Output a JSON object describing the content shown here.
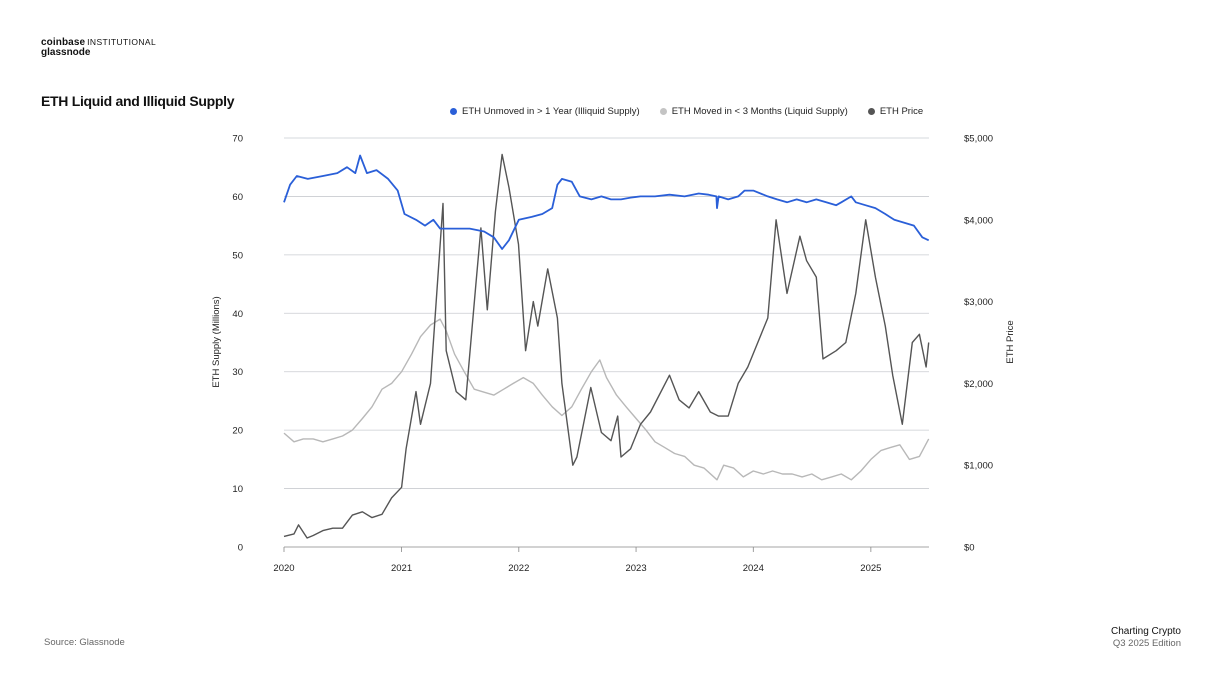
{
  "brand": {
    "coinbase": "coinbase",
    "institutional": "INSTITUTIONAL",
    "glassnode": "glassnode"
  },
  "title": "ETH Liquid and Illiquid Supply",
  "source": "Source: Glassnode",
  "footer": {
    "title": "Charting Crypto",
    "edition": "Q3 2025 Edition"
  },
  "chart_data": {
    "type": "line",
    "title": "ETH Liquid and Illiquid Supply",
    "xlabel": "",
    "ylabel": "ETH Supply (Millions)",
    "y2label": "ETH Price",
    "xlim": [
      "2020-01-01",
      "2025-07-01"
    ],
    "x_ticks": [
      "2020",
      "2021",
      "2022",
      "2023",
      "2024",
      "2025"
    ],
    "ylim": [
      0,
      70
    ],
    "y_ticks": [
      "0",
      "10",
      "20",
      "30",
      "40",
      "50",
      "60",
      "70"
    ],
    "y2lim": [
      0,
      5000
    ],
    "y2_ticks": [
      "$0",
      "$1,000",
      "$2,000",
      "$3,000",
      "$4,000",
      "$5,000"
    ],
    "grid": "horizontal",
    "legend_position": "top",
    "series": [
      {
        "name": "ETH Unmoved in > 1 Year (Illiquid Supply)",
        "axis": "left",
        "color": "#2a5fd8",
        "points": [
          [
            "2020-01-01",
            59
          ],
          [
            "2020-01-20",
            62
          ],
          [
            "2020-02-10",
            63.5
          ],
          [
            "2020-03-15",
            63
          ],
          [
            "2020-05-01",
            63.5
          ],
          [
            "2020-06-15",
            64
          ],
          [
            "2020-07-15",
            65
          ],
          [
            "2020-08-10",
            64
          ],
          [
            "2020-08-25",
            67
          ],
          [
            "2020-09-15",
            64
          ],
          [
            "2020-10-15",
            64.5
          ],
          [
            "2020-11-20",
            63
          ],
          [
            "2020-12-20",
            61
          ],
          [
            "2021-01-10",
            57
          ],
          [
            "2021-02-15",
            56
          ],
          [
            "2021-03-15",
            55
          ],
          [
            "2021-04-10",
            56
          ],
          [
            "2021-05-01",
            54.5
          ],
          [
            "2021-06-15",
            54.5
          ],
          [
            "2021-08-01",
            54.5
          ],
          [
            "2021-09-15",
            54
          ],
          [
            "2021-10-15",
            53
          ],
          [
            "2021-11-10",
            51
          ],
          [
            "2021-12-01",
            52.5
          ],
          [
            "2022-01-01",
            56
          ],
          [
            "2022-02-10",
            56.5
          ],
          [
            "2022-03-15",
            57
          ],
          [
            "2022-04-15",
            58
          ],
          [
            "2022-05-01",
            62
          ],
          [
            "2022-05-15",
            63
          ],
          [
            "2022-06-15",
            62.5
          ],
          [
            "2022-07-10",
            60
          ],
          [
            "2022-08-15",
            59.5
          ],
          [
            "2022-09-15",
            60
          ],
          [
            "2022-10-15",
            59.5
          ],
          [
            "2022-11-15",
            59.5
          ],
          [
            "2022-12-15",
            59.8
          ],
          [
            "2023-01-15",
            60
          ],
          [
            "2023-03-01",
            60
          ],
          [
            "2023-04-15",
            60.3
          ],
          [
            "2023-06-01",
            60
          ],
          [
            "2023-07-15",
            60.5
          ],
          [
            "2023-08-15",
            60.3
          ],
          [
            "2023-09-08",
            60
          ],
          [
            "2023-09-10",
            58
          ],
          [
            "2023-09-15",
            60
          ],
          [
            "2023-10-15",
            59.5
          ],
          [
            "2023-11-15",
            60
          ],
          [
            "2023-12-05",
            61
          ],
          [
            "2024-01-01",
            61
          ],
          [
            "2024-02-15",
            60
          ],
          [
            "2024-03-15",
            59.5
          ],
          [
            "2024-04-15",
            59
          ],
          [
            "2024-05-15",
            59.5
          ],
          [
            "2024-06-15",
            59
          ],
          [
            "2024-07-15",
            59.5
          ],
          [
            "2024-08-15",
            59
          ],
          [
            "2024-09-15",
            58.5
          ],
          [
            "2024-10-01",
            59
          ],
          [
            "2024-11-01",
            60
          ],
          [
            "2024-11-15",
            59
          ],
          [
            "2024-12-15",
            58.5
          ],
          [
            "2025-01-15",
            58
          ],
          [
            "2025-02-15",
            57
          ],
          [
            "2025-03-15",
            56
          ],
          [
            "2025-04-15",
            55.5
          ],
          [
            "2025-05-15",
            55
          ],
          [
            "2025-06-10",
            53
          ],
          [
            "2025-06-30",
            52.5
          ]
        ]
      },
      {
        "name": "ETH Moved in < 3 Months (Liquid Supply)",
        "axis": "left",
        "color": "#b8b8b8",
        "points": [
          [
            "2020-01-01",
            19.5
          ],
          [
            "2020-02-01",
            18
          ],
          [
            "2020-03-01",
            18.5
          ],
          [
            "2020-04-01",
            18.5
          ],
          [
            "2020-05-01",
            18
          ],
          [
            "2020-06-01",
            18.5
          ],
          [
            "2020-07-01",
            19
          ],
          [
            "2020-08-01",
            20
          ],
          [
            "2020-09-01",
            22
          ],
          [
            "2020-10-01",
            24
          ],
          [
            "2020-11-01",
            27
          ],
          [
            "2020-12-01",
            28
          ],
          [
            "2021-01-01",
            30
          ],
          [
            "2021-02-01",
            33
          ],
          [
            "2021-03-01",
            36
          ],
          [
            "2021-04-01",
            38
          ],
          [
            "2021-05-01",
            39
          ],
          [
            "2021-05-20",
            37
          ],
          [
            "2021-06-15",
            33
          ],
          [
            "2021-07-15",
            30
          ],
          [
            "2021-08-15",
            27
          ],
          [
            "2021-09-15",
            26.5
          ],
          [
            "2021-10-15",
            26
          ],
          [
            "2021-11-15",
            27
          ],
          [
            "2021-12-15",
            28
          ],
          [
            "2022-01-15",
            29
          ],
          [
            "2022-02-15",
            28
          ],
          [
            "2022-03-15",
            26
          ],
          [
            "2022-04-15",
            24
          ],
          [
            "2022-05-15",
            22.5
          ],
          [
            "2022-06-15",
            24
          ],
          [
            "2022-07-15",
            27
          ],
          [
            "2022-08-15",
            30
          ],
          [
            "2022-09-10",
            32
          ],
          [
            "2022-10-01",
            29
          ],
          [
            "2022-11-01",
            26
          ],
          [
            "2022-12-01",
            24
          ],
          [
            "2023-01-01",
            22
          ],
          [
            "2023-02-01",
            20
          ],
          [
            "2023-03-01",
            18
          ],
          [
            "2023-04-01",
            17
          ],
          [
            "2023-05-01",
            16
          ],
          [
            "2023-06-01",
            15.5
          ],
          [
            "2023-07-01",
            14
          ],
          [
            "2023-08-01",
            13.5
          ],
          [
            "2023-09-10",
            11.5
          ],
          [
            "2023-10-01",
            14
          ],
          [
            "2023-11-01",
            13.5
          ],
          [
            "2023-12-01",
            12
          ],
          [
            "2024-01-01",
            13
          ],
          [
            "2024-02-01",
            12.5
          ],
          [
            "2024-03-01",
            13
          ],
          [
            "2024-04-01",
            12.5
          ],
          [
            "2024-05-01",
            12.5
          ],
          [
            "2024-06-01",
            12
          ],
          [
            "2024-07-01",
            12.5
          ],
          [
            "2024-08-01",
            11.5
          ],
          [
            "2024-09-01",
            12
          ],
          [
            "2024-10-01",
            12.5
          ],
          [
            "2024-11-01",
            11.5
          ],
          [
            "2024-12-01",
            13
          ],
          [
            "2025-01-01",
            15
          ],
          [
            "2025-02-01",
            16.5
          ],
          [
            "2025-03-01",
            17
          ],
          [
            "2025-04-01",
            17.5
          ],
          [
            "2025-05-01",
            15
          ],
          [
            "2025-06-01",
            15.5
          ],
          [
            "2025-06-30",
            18.5
          ]
        ]
      },
      {
        "name": "ETH Price",
        "axis": "right",
        "color": "#555555",
        "points": [
          [
            "2020-01-01",
            130
          ],
          [
            "2020-02-01",
            160
          ],
          [
            "2020-02-15",
            270
          ],
          [
            "2020-03-13",
            110
          ],
          [
            "2020-04-01",
            140
          ],
          [
            "2020-05-01",
            200
          ],
          [
            "2020-06-01",
            230
          ],
          [
            "2020-07-01",
            230
          ],
          [
            "2020-08-01",
            390
          ],
          [
            "2020-09-01",
            430
          ],
          [
            "2020-10-01",
            360
          ],
          [
            "2020-11-01",
            400
          ],
          [
            "2020-12-01",
            600
          ],
          [
            "2021-01-01",
            730
          ],
          [
            "2021-01-15",
            1200
          ],
          [
            "2021-02-15",
            1900
          ],
          [
            "2021-03-01",
            1500
          ],
          [
            "2021-04-01",
            2000
          ],
          [
            "2021-05-10",
            4200
          ],
          [
            "2021-05-20",
            2400
          ],
          [
            "2021-06-20",
            1900
          ],
          [
            "2021-07-20",
            1800
          ],
          [
            "2021-08-20",
            3200
          ],
          [
            "2021-09-05",
            3900
          ],
          [
            "2021-09-25",
            2900
          ],
          [
            "2021-10-20",
            4100
          ],
          [
            "2021-11-10",
            4800
          ],
          [
            "2021-12-01",
            4400
          ],
          [
            "2021-12-31",
            3700
          ],
          [
            "2022-01-22",
            2400
          ],
          [
            "2022-02-15",
            3000
          ],
          [
            "2022-03-01",
            2700
          ],
          [
            "2022-04-01",
            3400
          ],
          [
            "2022-05-01",
            2800
          ],
          [
            "2022-05-15",
            2000
          ],
          [
            "2022-06-18",
            1000
          ],
          [
            "2022-07-01",
            1100
          ],
          [
            "2022-08-13",
            1950
          ],
          [
            "2022-09-15",
            1400
          ],
          [
            "2022-10-15",
            1300
          ],
          [
            "2022-11-05",
            1600
          ],
          [
            "2022-11-15",
            1100
          ],
          [
            "2022-12-15",
            1200
          ],
          [
            "2023-01-15",
            1500
          ],
          [
            "2023-02-15",
            1650
          ],
          [
            "2023-04-15",
            2100
          ],
          [
            "2023-05-15",
            1800
          ],
          [
            "2023-06-15",
            1700
          ],
          [
            "2023-07-15",
            1900
          ],
          [
            "2023-08-20",
            1650
          ],
          [
            "2023-09-15",
            1600
          ],
          [
            "2023-10-15",
            1600
          ],
          [
            "2023-11-15",
            2000
          ],
          [
            "2023-12-15",
            2200
          ],
          [
            "2024-01-15",
            2500
          ],
          [
            "2024-02-15",
            2800
          ],
          [
            "2024-03-12",
            4000
          ],
          [
            "2024-04-15",
            3100
          ],
          [
            "2024-05-25",
            3800
          ],
          [
            "2024-06-15",
            3500
          ],
          [
            "2024-07-15",
            3300
          ],
          [
            "2024-08-05",
            2300
          ],
          [
            "2024-09-15",
            2400
          ],
          [
            "2024-10-15",
            2500
          ],
          [
            "2024-11-15",
            3100
          ],
          [
            "2024-12-16",
            4000
          ],
          [
            "2025-01-15",
            3300
          ],
          [
            "2025-02-15",
            2700
          ],
          [
            "2025-03-10",
            2100
          ],
          [
            "2025-04-09",
            1500
          ],
          [
            "2025-05-10",
            2500
          ],
          [
            "2025-06-01",
            2600
          ],
          [
            "2025-06-22",
            2200
          ],
          [
            "2025-06-30",
            2500
          ]
        ]
      }
    ]
  }
}
